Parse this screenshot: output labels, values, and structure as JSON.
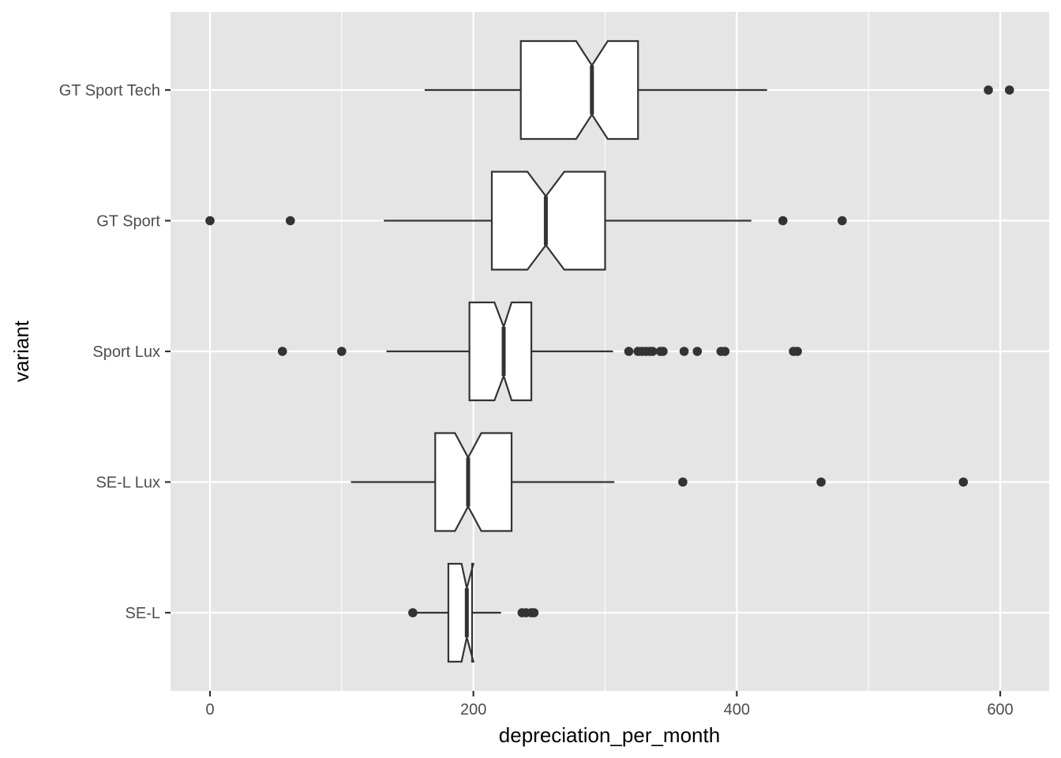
{
  "chart_data": {
    "type": "boxplot",
    "orientation": "horizontal",
    "notched": true,
    "xlabel": "depreciation_per_month",
    "ylabel": "variant",
    "xlim": [
      -30,
      637
    ],
    "x_ticks": [
      0,
      200,
      400,
      600
    ],
    "x_minor_ticks": [
      100,
      300,
      500
    ],
    "categories": [
      "GT Sport Tech",
      "GT Sport",
      "Sport Lux",
      "SE-L Lux",
      "SE-L"
    ],
    "boxes": [
      {
        "category": "GT Sport Tech",
        "whisker_low": 163,
        "q1": 236,
        "median": 290,
        "q3": 325,
        "whisker_high": 423,
        "notch_low": 278,
        "notch_high": 302,
        "outliers": [
          591,
          607
        ]
      },
      {
        "category": "GT Sport",
        "whisker_low": 132,
        "q1": 214,
        "median": 255,
        "q3": 300,
        "whisker_high": 411,
        "notch_low": 241,
        "notch_high": 269,
        "outliers": [
          0,
          61,
          435,
          480
        ]
      },
      {
        "category": "Sport Lux",
        "whisker_low": 134,
        "q1": 197,
        "median": 223,
        "q3": 244,
        "whisker_high": 306,
        "notch_low": 216,
        "notch_high": 229,
        "outliers": [
          55,
          100,
          318,
          325,
          328,
          331,
          334,
          336,
          342,
          344,
          360,
          370,
          388,
          391,
          443,
          446
        ]
      },
      {
        "category": "SE-L Lux",
        "whisker_low": 107,
        "q1": 171,
        "median": 196,
        "q3": 229,
        "whisker_high": 307,
        "notch_low": 186,
        "notch_high": 206,
        "outliers": [
          359,
          464,
          572
        ]
      },
      {
        "category": "SE-L",
        "whisker_low": 154,
        "q1": 181,
        "median": 195,
        "q3": 199,
        "whisker_high": 221,
        "notch_low": 191,
        "notch_high": 200,
        "outliers": [
          154,
          237,
          240,
          244,
          246
        ]
      }
    ],
    "colors": {
      "panel_background": "#e5e5e5",
      "grid": "#ffffff",
      "box_fill": "#ffffff",
      "box_line": "#333333",
      "point": "#333333"
    }
  }
}
